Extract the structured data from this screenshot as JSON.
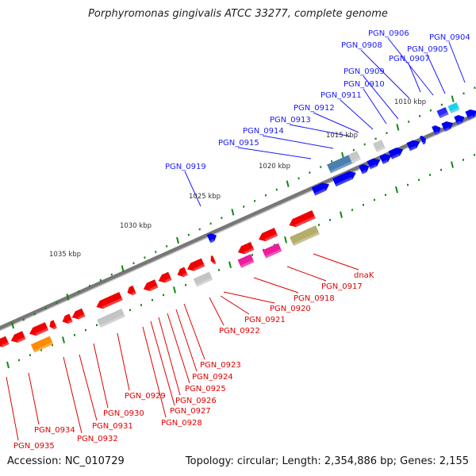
{
  "title": "Porphyromonas gingivalis ATCC 33277, complete genome",
  "footer": {
    "accession": "Accession: NC_010729",
    "summary": "Topology: circular; Length: 2,354,886 bp; Genes: 2,155"
  },
  "colors": {
    "forward_label": "#1a1aff",
    "reverse_label": "#e00000",
    "forward_gene": "#0a0af0",
    "reverse_gene": "#f00000",
    "backbone": "#888888",
    "tick": "#118811"
  },
  "scale_labels": [
    "1010 kbp",
    "1015 kbp",
    "1020 kbp",
    "1025 kbp",
    "1030 kbp",
    "1035 kbp"
  ],
  "forward_labels": [
    "PGN_0904",
    "PGN_0905",
    "PGN_0906",
    "PGN_0907",
    "PGN_0908",
    "PGN_0909",
    "PGN_0910",
    "PGN_0911",
    "PGN_0912",
    "PGN_0913",
    "PGN_0914",
    "PGN_0915",
    "PGN_0919"
  ],
  "reverse_labels": [
    "dnaK",
    "PGN_0917",
    "PGN_0918",
    "PGN_0920",
    "PGN_0921",
    "PGN_0922",
    "PGN_0923",
    "PGN_0924",
    "PGN_0925",
    "PGN_0926",
    "PGN_0927",
    "PGN_0928",
    "PGN_0929",
    "PGN_0930",
    "PGN_0931",
    "PGN_0932",
    "PGN_0934",
    "PGN_0935"
  ]
}
